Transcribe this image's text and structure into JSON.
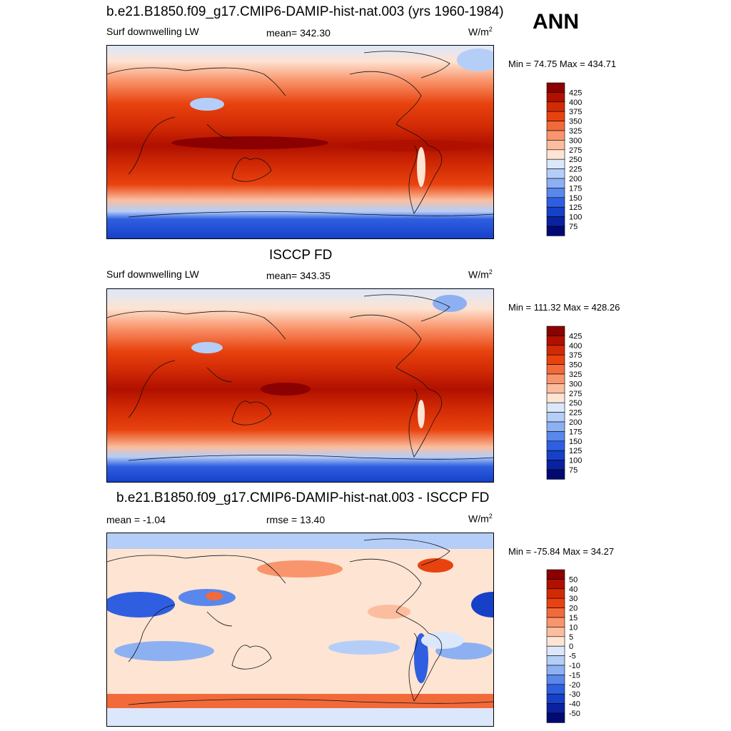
{
  "header": {
    "season": "ANN"
  },
  "panels": [
    {
      "title": "b.e21.B1850.f09_g17.CMIP6-DAMIP-hist-nat.003 (yrs 1960-1984)",
      "left": "Surf downwelling LW",
      "center": "mean= 342.30",
      "units": "W/m",
      "units_sup": "2",
      "minmax": "Min =  74.75 Max = 434.71"
    },
    {
      "title": "ISCCP FD",
      "left": "Surf downwelling LW",
      "center": "mean= 343.35",
      "units": "W/m",
      "units_sup": "2",
      "minmax": "Min = 111.32 Max = 428.26"
    },
    {
      "title": "b.e21.B1850.f09_g17.CMIP6-DAMIP-hist-nat.003 - ISCCP FD",
      "left": "mean =  -1.04",
      "center": "rmse =  13.40",
      "units": "W/m",
      "units_sup": "2",
      "minmax": "Min = -75.84 Max =  34.27"
    }
  ],
  "chart_data": [
    {
      "type": "heatmap",
      "title": "b.e21.B1850.f09_g17.CMIP6-DAMIP-hist-nat.003 (yrs 1960-1984)",
      "variable": "Surf downwelling LW",
      "mean": 342.3,
      "min": 74.75,
      "max": 434.71,
      "units": "W/m2",
      "colorbar_levels": [
        "425",
        "400",
        "375",
        "350",
        "325",
        "300",
        "275",
        "250",
        "225",
        "200",
        "175",
        "150",
        "125",
        "100",
        "75"
      ],
      "colorbar_colors": [
        "#8b0000",
        "#b01000",
        "#d22a05",
        "#e8430f",
        "#f26a3a",
        "#f9956c",
        "#fbbd9e",
        "#fde4d3",
        "#dbe7fb",
        "#b5cef8",
        "#8db0f3",
        "#5a87ec",
        "#2f5fe0",
        "#1640c8",
        "#0a22a0",
        "#000a72"
      ]
    },
    {
      "type": "heatmap",
      "title": "ISCCP FD",
      "variable": "Surf downwelling LW",
      "mean": 343.35,
      "min": 111.32,
      "max": 428.26,
      "units": "W/m2",
      "colorbar_levels": [
        "425",
        "400",
        "375",
        "350",
        "325",
        "300",
        "275",
        "250",
        "225",
        "200",
        "175",
        "150",
        "125",
        "100",
        "75"
      ],
      "colorbar_colors": [
        "#8b0000",
        "#b01000",
        "#d22a05",
        "#e8430f",
        "#f26a3a",
        "#f9956c",
        "#fbbd9e",
        "#fde4d3",
        "#dbe7fb",
        "#b5cef8",
        "#8db0f3",
        "#5a87ec",
        "#2f5fe0",
        "#1640c8",
        "#0a22a0",
        "#000a72"
      ]
    },
    {
      "type": "heatmap",
      "title": "b.e21.B1850.f09_g17.CMIP6-DAMIP-hist-nat.003 - ISCCP FD",
      "mean": -1.04,
      "rmse": 13.4,
      "min": -75.84,
      "max": 34.27,
      "units": "W/m2",
      "colorbar_levels": [
        "50",
        "40",
        "30",
        "20",
        "15",
        "10",
        "5",
        "0",
        "-5",
        "-10",
        "-15",
        "-20",
        "-30",
        "-40",
        "-50"
      ],
      "colorbar_colors": [
        "#8b0000",
        "#b01000",
        "#d22a05",
        "#e8430f",
        "#f26a3a",
        "#f9956c",
        "#fbbd9e",
        "#fde4d3",
        "#dbe7fb",
        "#b5cef8",
        "#8db0f3",
        "#5a87ec",
        "#2f5fe0",
        "#1640c8",
        "#0a22a0",
        "#000a72"
      ]
    }
  ]
}
